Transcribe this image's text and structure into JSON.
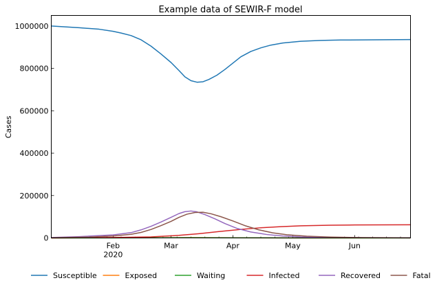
{
  "chart_data": {
    "type": "line",
    "title": "Example data of SEWIR-F model",
    "xlabel": "",
    "ylabel": "Cases",
    "xlim": [
      "2020-01-01",
      "2020-06-29"
    ],
    "ylim": [
      0,
      1050000
    ],
    "grid": false,
    "legend_position": "bottom",
    "x_ticks": [
      {
        "date": "2020-02-01",
        "label": "Feb",
        "sublabel": "2020"
      },
      {
        "date": "2020-03-01",
        "label": "Mar",
        "sublabel": ""
      },
      {
        "date": "2020-04-01",
        "label": "Apr",
        "sublabel": ""
      },
      {
        "date": "2020-05-01",
        "label": "May",
        "sublabel": ""
      },
      {
        "date": "2020-06-01",
        "label": "Jun",
        "sublabel": ""
      }
    ],
    "y_ticks": [
      {
        "value": 0,
        "label": "0"
      },
      {
        "value": 200000,
        "label": "200000"
      },
      {
        "value": 400000,
        "label": "400000"
      },
      {
        "value": 600000,
        "label": "600000"
      },
      {
        "value": 800000,
        "label": "800000"
      },
      {
        "value": 1000000,
        "label": "1000000"
      }
    ],
    "series": [
      {
        "name": "Susceptible",
        "color": "#1f77b4",
        "points": [
          [
            "2020-01-01",
            1000000
          ],
          [
            "2020-01-15",
            992000
          ],
          [
            "2020-01-25",
            985000
          ],
          [
            "2020-02-01",
            975000
          ],
          [
            "2020-02-05",
            967000
          ],
          [
            "2020-02-10",
            955000
          ],
          [
            "2020-02-15",
            935000
          ],
          [
            "2020-02-20",
            905000
          ],
          [
            "2020-02-25",
            868000
          ],
          [
            "2020-03-01",
            828000
          ],
          [
            "2020-03-05",
            790000
          ],
          [
            "2020-03-08",
            760000
          ],
          [
            "2020-03-11",
            742000
          ],
          [
            "2020-03-14",
            735000
          ],
          [
            "2020-03-17",
            737000
          ],
          [
            "2020-03-20",
            748000
          ],
          [
            "2020-03-24",
            768000
          ],
          [
            "2020-03-28",
            795000
          ],
          [
            "2020-04-01",
            825000
          ],
          [
            "2020-04-05",
            855000
          ],
          [
            "2020-04-10",
            880000
          ],
          [
            "2020-04-15",
            897000
          ],
          [
            "2020-04-20",
            910000
          ],
          [
            "2020-04-26",
            920000
          ],
          [
            "2020-05-05",
            928000
          ],
          [
            "2020-05-15",
            932000
          ],
          [
            "2020-05-25",
            934000
          ],
          [
            "2020-06-10",
            935000
          ],
          [
            "2020-06-29",
            936000
          ]
        ]
      },
      {
        "name": "Exposed",
        "color": "#ff7f0e",
        "points": [
          [
            "2020-01-01",
            0
          ],
          [
            "2020-02-15",
            800
          ],
          [
            "2020-03-10",
            1500
          ],
          [
            "2020-04-01",
            800
          ],
          [
            "2020-05-01",
            200
          ],
          [
            "2020-06-29",
            0
          ]
        ]
      },
      {
        "name": "Waiting",
        "color": "#2ca02c",
        "points": [
          [
            "2020-01-01",
            0
          ],
          [
            "2020-02-15",
            500
          ],
          [
            "2020-03-10",
            1000
          ],
          [
            "2020-04-01",
            500
          ],
          [
            "2020-05-01",
            100
          ],
          [
            "2020-06-29",
            0
          ]
        ]
      },
      {
        "name": "Infected",
        "color": "#d62728",
        "points": [
          [
            "2020-01-01",
            0
          ],
          [
            "2020-02-01",
            2000
          ],
          [
            "2020-02-20",
            5000
          ],
          [
            "2020-03-05",
            12000
          ],
          [
            "2020-03-15",
            20000
          ],
          [
            "2020-03-25",
            30000
          ],
          [
            "2020-04-05",
            40000
          ],
          [
            "2020-04-15",
            48000
          ],
          [
            "2020-04-25",
            53000
          ],
          [
            "2020-05-05",
            57000
          ],
          [
            "2020-05-20",
            60000
          ],
          [
            "2020-06-01",
            61000
          ],
          [
            "2020-06-29",
            62000
          ]
        ]
      },
      {
        "name": "Recovered",
        "color": "#9467bd",
        "points": [
          [
            "2020-01-01",
            2000
          ],
          [
            "2020-01-15",
            6000
          ],
          [
            "2020-02-01",
            14000
          ],
          [
            "2020-02-10",
            25000
          ],
          [
            "2020-02-15",
            38000
          ],
          [
            "2020-02-20",
            55000
          ],
          [
            "2020-02-25",
            75000
          ],
          [
            "2020-03-01",
            97000
          ],
          [
            "2020-03-05",
            115000
          ],
          [
            "2020-03-08",
            124000
          ],
          [
            "2020-03-11",
            127000
          ],
          [
            "2020-03-14",
            123000
          ],
          [
            "2020-03-18",
            110000
          ],
          [
            "2020-03-23",
            90000
          ],
          [
            "2020-03-28",
            68000
          ],
          [
            "2020-04-03",
            45000
          ],
          [
            "2020-04-10",
            28000
          ],
          [
            "2020-04-18",
            16000
          ],
          [
            "2020-04-26",
            9000
          ],
          [
            "2020-05-05",
            5000
          ],
          [
            "2020-05-20",
            2500
          ],
          [
            "2020-06-05",
            1000
          ],
          [
            "2020-06-29",
            500
          ]
        ]
      },
      {
        "name": "Fatal",
        "color": "#8c564b",
        "points": [
          [
            "2020-01-01",
            1000
          ],
          [
            "2020-01-20",
            4000
          ],
          [
            "2020-02-01",
            9000
          ],
          [
            "2020-02-10",
            17000
          ],
          [
            "2020-02-15",
            26000
          ],
          [
            "2020-02-20",
            40000
          ],
          [
            "2020-02-25",
            58000
          ],
          [
            "2020-03-01",
            78000
          ],
          [
            "2020-03-05",
            97000
          ],
          [
            "2020-03-09",
            112000
          ],
          [
            "2020-03-13",
            120000
          ],
          [
            "2020-03-17",
            121000
          ],
          [
            "2020-03-21",
            114000
          ],
          [
            "2020-03-26",
            100000
          ],
          [
            "2020-04-01",
            80000
          ],
          [
            "2020-04-07",
            58000
          ],
          [
            "2020-04-14",
            38000
          ],
          [
            "2020-04-21",
            24000
          ],
          [
            "2020-04-28",
            15000
          ],
          [
            "2020-05-08",
            8000
          ],
          [
            "2020-05-20",
            4000
          ],
          [
            "2020-06-05",
            1500
          ],
          [
            "2020-06-29",
            500
          ]
        ]
      }
    ]
  }
}
